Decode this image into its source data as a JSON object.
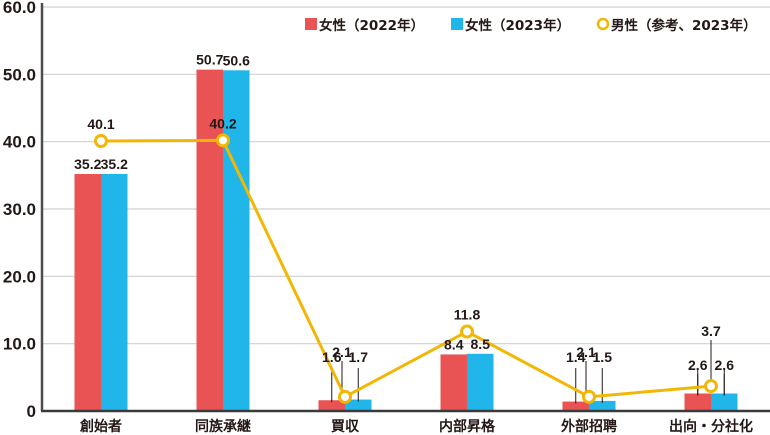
{
  "chart_data": {
    "type": "bar",
    "title": "",
    "xlabel": "",
    "ylabel": "",
    "ylim": [
      0,
      60
    ],
    "yticks": [
      "0",
      "10.0",
      "20.0",
      "30.0",
      "40.0",
      "50.0",
      "60.0"
    ],
    "grid": true,
    "legend_position": "top-right",
    "categories": [
      "創始者",
      "同族承継",
      "買収",
      "内部昇格",
      "外部招聘",
      "出向・分社化"
    ],
    "series": [
      {
        "name": "女性（2022年）",
        "type": "bar",
        "color": "#e95353",
        "values": [
          35.2,
          50.7,
          1.6,
          8.4,
          1.4,
          2.6
        ]
      },
      {
        "name": "女性（2023年）",
        "type": "bar",
        "color": "#20b6ea",
        "values": [
          35.2,
          50.6,
          1.7,
          8.5,
          1.5,
          2.6
        ]
      },
      {
        "name": "男性（参考、2023年）",
        "type": "line",
        "color": "#f2b705",
        "marker": "open-circle",
        "values": [
          40.1,
          40.2,
          2.1,
          11.8,
          2.1,
          3.7
        ]
      }
    ]
  },
  "legend": {
    "items": [
      {
        "label": "女性（2022年）",
        "marker": "square",
        "color": "#e95353"
      },
      {
        "label": "女性（2023年）",
        "marker": "square",
        "color": "#20b6ea"
      },
      {
        "label": "男性（参考、2023年）",
        "marker": "open-circle",
        "color": "#f2b705"
      }
    ]
  }
}
